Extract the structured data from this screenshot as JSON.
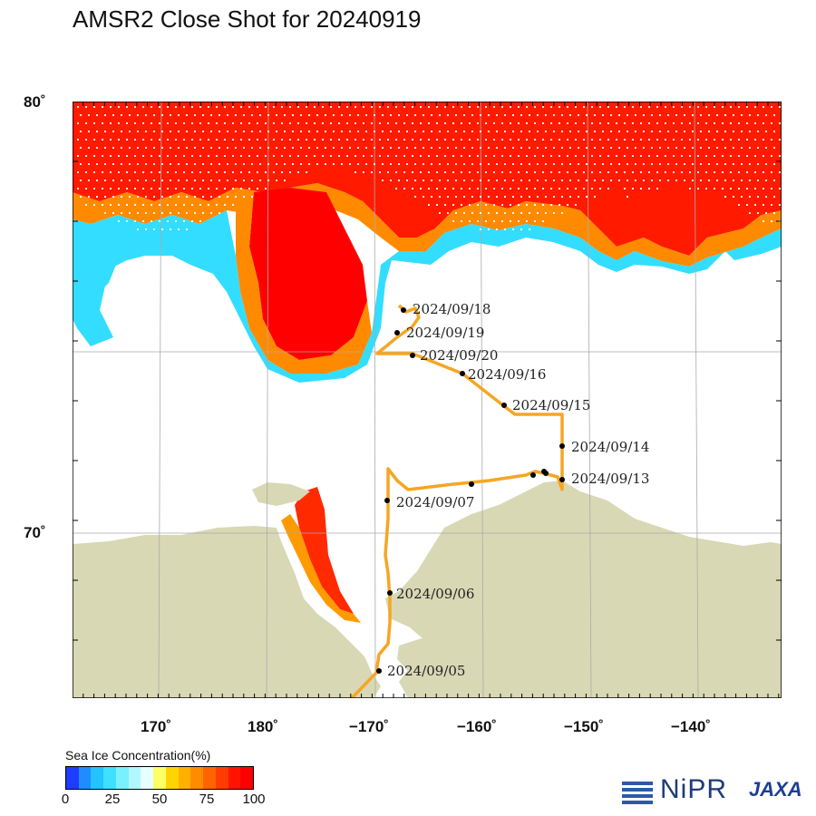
{
  "title": "AMSR2 Close Shot for 20240919",
  "map": {
    "lat_labels": [
      "80˚",
      "70˚"
    ],
    "lon_labels": [
      "170˚",
      "180˚",
      "−170˚",
      "−160˚",
      "−150˚",
      "−140˚"
    ],
    "ship_track_color": "#f5a623",
    "land_color": "#d9d8b5",
    "ocean_color": "#ffffff",
    "track_points": [
      {
        "date": "2024/09/05"
      },
      {
        "date": "2024/09/06"
      },
      {
        "date": "2024/09/07"
      },
      {
        "date": "2024/09/13"
      },
      {
        "date": "2024/09/14"
      },
      {
        "date": "2024/09/15"
      },
      {
        "date": "2024/09/16"
      },
      {
        "date": "2024/09/18"
      },
      {
        "date": "2024/09/19"
      },
      {
        "date": "2024/09/20"
      }
    ]
  },
  "legend": {
    "title": "Sea Ice Concentration(%)",
    "ticks": [
      "0",
      "25",
      "50",
      "75",
      "100"
    ],
    "colors": [
      "#1e3cff",
      "#1f8cff",
      "#22c4ff",
      "#3fe0ff",
      "#7af0ff",
      "#b0f7ff",
      "#e8ffff",
      "#ffff66",
      "#ffd400",
      "#ffb000",
      "#ff8c00",
      "#ff6400",
      "#ff3c00",
      "#ff1400",
      "#ff0000"
    ]
  },
  "logos": {
    "nipr": "NiPR",
    "jaxa": "JAXA"
  }
}
